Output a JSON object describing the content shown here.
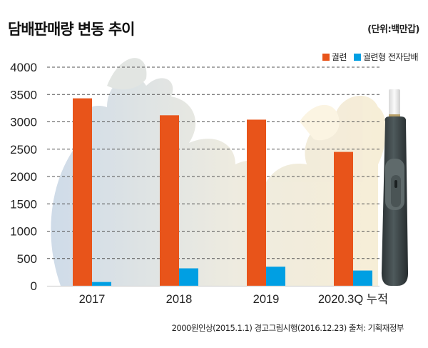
{
  "header": {
    "title": "담배판매량 변동 추이",
    "unit": "(단위:백만갑)"
  },
  "legend": [
    {
      "label": "궐련",
      "color": "#e8541a"
    },
    {
      "label": "궐련형 전자담배",
      "color": "#009fe3"
    }
  ],
  "footer": {
    "source": "2000원인상(2015.1.1) 경고그림시행(2016.12.23) 출처: 기획재정부"
  },
  "chart_data": {
    "type": "bar",
    "title": "담배판매량 변동 추이",
    "unit": "백만갑",
    "xlabel": "",
    "ylabel": "",
    "categories": [
      "2017",
      "2018",
      "2019",
      "2020.3Q 누적"
    ],
    "series": [
      {
        "name": "궐련",
        "color": "#e8541a",
        "values": [
          3430,
          3120,
          3040,
          2450
        ]
      },
      {
        "name": "궐련형 전자담배",
        "color": "#009fe3",
        "values": [
          70,
          320,
          350,
          280
        ]
      }
    ],
    "ylim": [
      0,
      4000
    ],
    "yticks": [
      0,
      500,
      1000,
      1500,
      2000,
      2500,
      3000,
      3500,
      4000
    ],
    "grid": true,
    "grid_style": "dashed",
    "legend_position": "top-right"
  }
}
